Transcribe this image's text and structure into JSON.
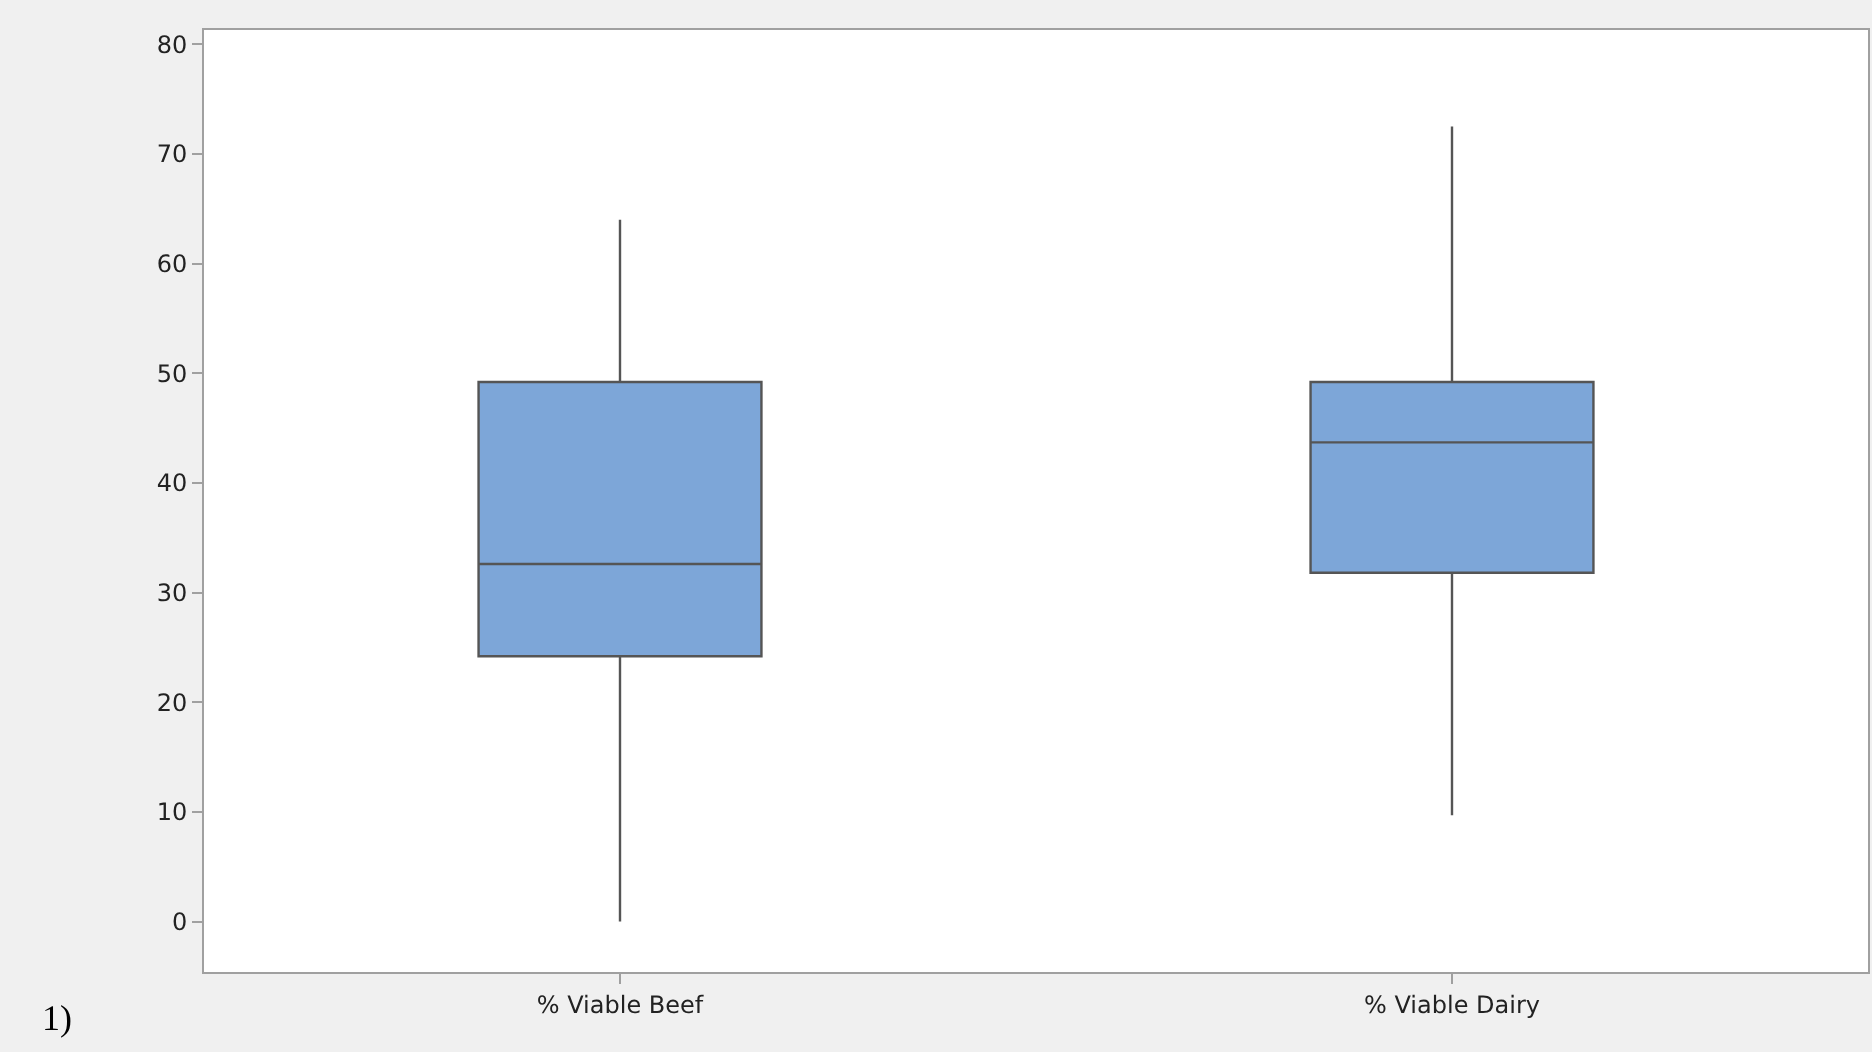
{
  "chart_data": {
    "type": "box",
    "categories": [
      "% Viable Beef",
      "% Viable Dairy"
    ],
    "boxes": [
      {
        "low": 0,
        "q1": 24.2,
        "median": 32.6,
        "q3": 49.2,
        "high": 64
      },
      {
        "low": 9.7,
        "q1": 31.8,
        "median": 43.7,
        "q3": 49.2,
        "high": 72.5
      }
    ],
    "color": "#7da6d8",
    "ylim": [
      -4.6,
      81.3
    ],
    "yticks": [
      0,
      10,
      20,
      30,
      40,
      50,
      60,
      70,
      80
    ],
    "annotations": [
      "1)"
    ]
  }
}
